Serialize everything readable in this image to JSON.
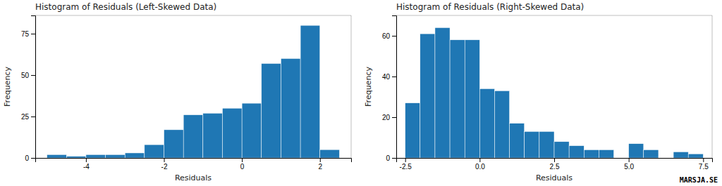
{
  "chart_data": [
    {
      "type": "histogram",
      "title": "Histogram of Residuals (Left-Skewed Data)",
      "x_label": "Residuals",
      "y_label": "Frequency",
      "bins": [
        -5.0,
        -4.5,
        -4.0,
        -3.5,
        -3.0,
        -2.5,
        -2.0,
        -1.5,
        -1.0,
        -0.5,
        0.0,
        0.5,
        1.0,
        1.5,
        2.0,
        2.5
      ],
      "values": [
        2,
        1,
        2,
        2,
        3,
        8,
        17,
        26,
        27,
        30,
        33,
        57,
        60,
        80,
        5
      ],
      "xlim": [
        -5.3,
        2.8
      ],
      "ylim": [
        0,
        86
      ],
      "xticks": [
        -4,
        -2,
        0,
        2
      ],
      "yticks": [
        0,
        25,
        50,
        75
      ],
      "grid": false
    },
    {
      "type": "histogram",
      "title": "Histogram of Residuals (Right-Skewed Data)",
      "x_label": "Residuals",
      "y_label": "Frequency",
      "bins": [
        -2.5,
        -2.0,
        -1.5,
        -1.0,
        -0.5,
        0.0,
        0.5,
        1.0,
        1.5,
        2.0,
        2.5,
        3.0,
        3.5,
        4.0,
        4.5,
        5.0,
        5.5,
        6.0,
        6.5,
        7.0,
        7.5
      ],
      "values": [
        27,
        61,
        64,
        58,
        58,
        34,
        33,
        17,
        13,
        13,
        8,
        6,
        4,
        4,
        0,
        7,
        4,
        0,
        3,
        2
      ],
      "xlim": [
        -2.8,
        7.8
      ],
      "ylim": [
        0,
        70
      ],
      "xticks": [
        -2.5,
        {
          "value": 0,
          "label": "0.0"
        },
        2.5,
        {
          "value": 5,
          "label": "5.0"
        },
        7.5
      ],
      "yticks": [
        0,
        20,
        40,
        60
      ],
      "grid": false,
      "annotations": [
        "MARSJA.SE"
      ]
    }
  ]
}
